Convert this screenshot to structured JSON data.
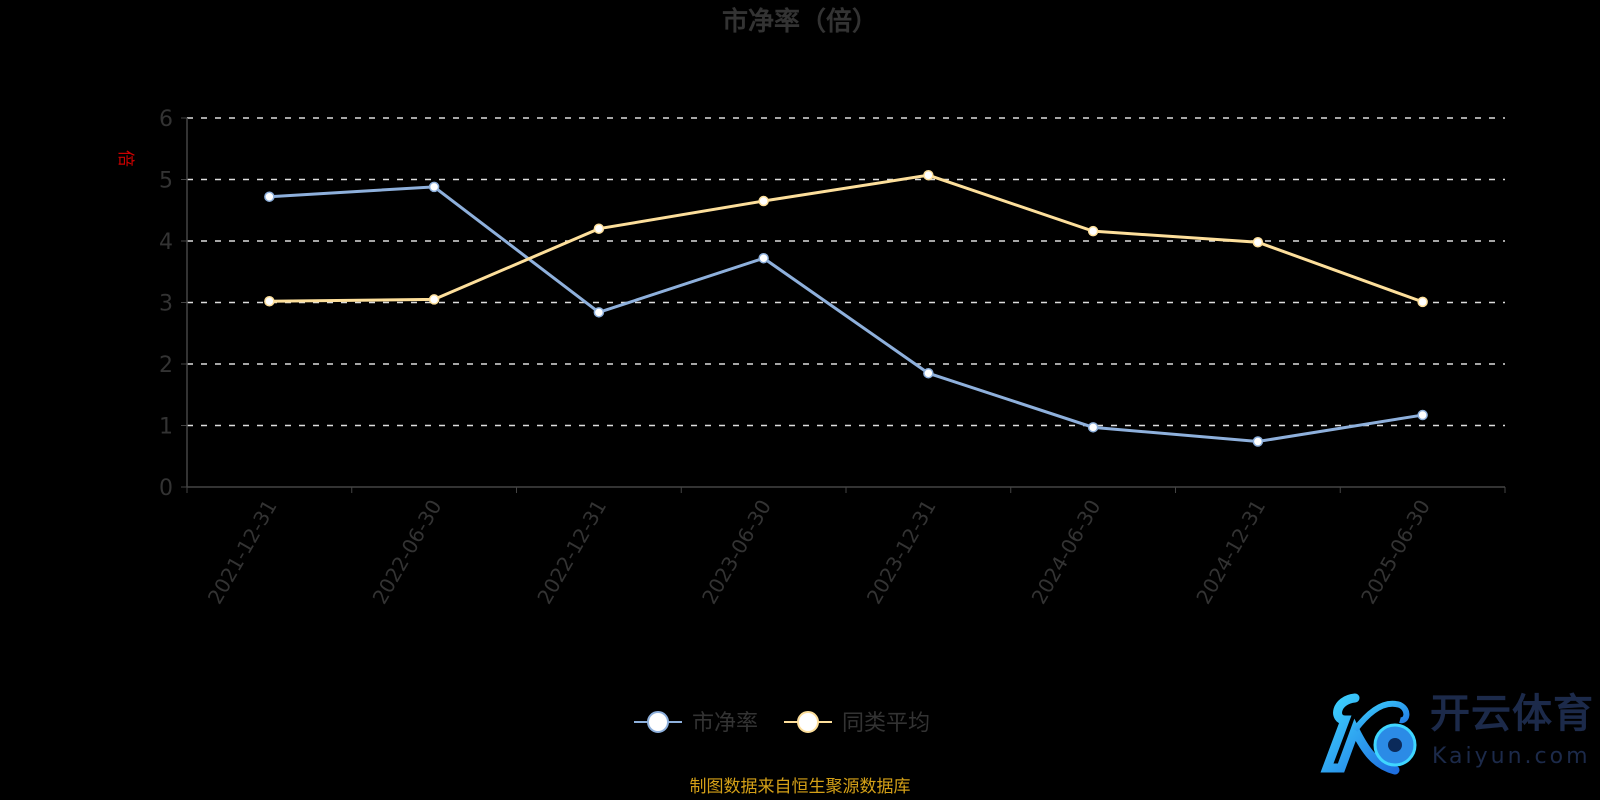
{
  "chart_data": {
    "type": "line",
    "title": "市净率（倍）",
    "ylabel": "倍",
    "ylim": [
      0,
      6
    ],
    "yticks": [
      0,
      1,
      2,
      3,
      4,
      5,
      6
    ],
    "grid": true,
    "legend_position": "bottom-center",
    "categories": [
      "2021-12-31",
      "2022-06-30",
      "2022-12-31",
      "2023-06-30",
      "2023-12-31",
      "2024-06-30",
      "2024-12-31",
      "2025-06-30"
    ],
    "series": [
      {
        "name": "市净率",
        "color": "#8eb0dc",
        "values": [
          4.72,
          4.88,
          2.84,
          3.72,
          1.85,
          0.97,
          0.74,
          1.17
        ]
      },
      {
        "name": "同类平均",
        "color": "#fddf9b",
        "values": [
          3.02,
          3.05,
          4.2,
          4.65,
          5.07,
          4.16,
          3.98,
          3.01
        ]
      }
    ]
  },
  "source": "制图数据来自恒生聚源数据库",
  "logo": {
    "cn": "开云体育",
    "en": "Kaiyun.com"
  }
}
